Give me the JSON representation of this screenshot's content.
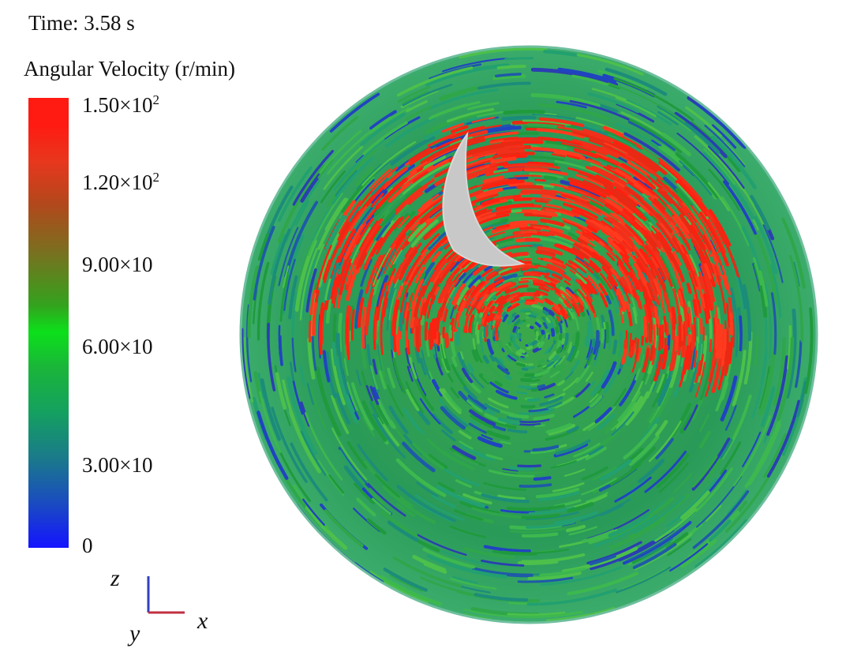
{
  "header": {
    "time": "Time: 3.58 s",
    "legend_title": "Angular Velocity (r/min)"
  },
  "colorbar": {
    "ticks": [
      {
        "base": "1.50×10",
        "exp": "2"
      },
      {
        "base": "1.20×10",
        "exp": "2"
      },
      {
        "base": "9.00×10",
        "exp": ""
      },
      {
        "base": "6.00×10",
        "exp": ""
      },
      {
        "base": "3.00×10",
        "exp": ""
      },
      {
        "base": "0",
        "exp": ""
      }
    ],
    "colors": {
      "max": "#ff1a12",
      "mid": "#0ce01a",
      "min": "#1414ff"
    }
  },
  "axes": {
    "z": "z",
    "x": "x",
    "y": "y"
  }
}
